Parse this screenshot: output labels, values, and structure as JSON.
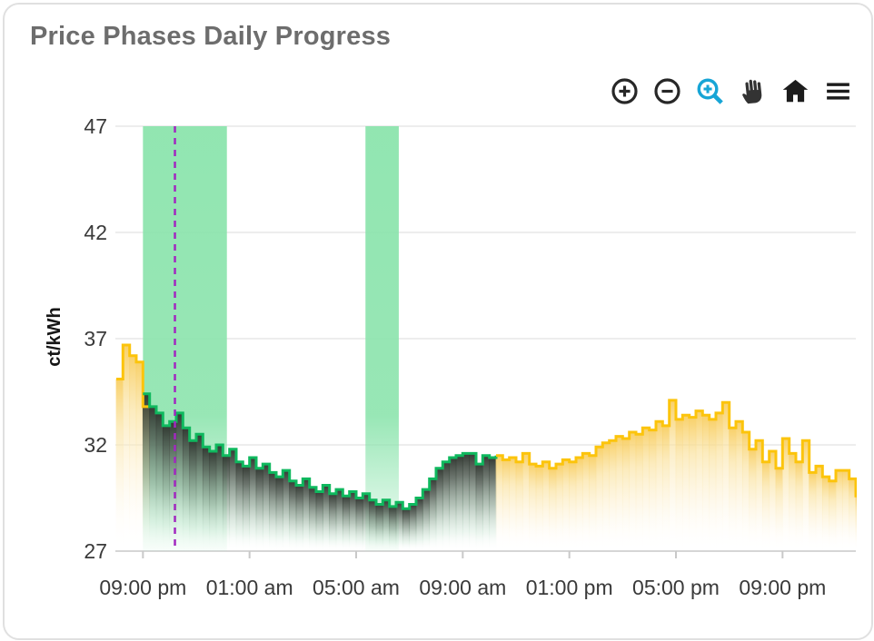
{
  "title": "Price Phases Daily Progress",
  "toolbar": {
    "icons": [
      "zoom-in-icon",
      "zoom-out-icon",
      "box-zoom-icon",
      "pan-hand-icon",
      "home-icon",
      "menu-icon"
    ],
    "icon_color": "#272727",
    "active_tool_color": "#17a5d6",
    "active_tool": "box-zoom"
  },
  "chart_data": {
    "type": "area",
    "title": "Price Phases Daily Progress",
    "xlabel": "",
    "ylabel": "ct/kWh",
    "ylim": [
      27,
      47
    ],
    "y_ticks": [
      47,
      42,
      37,
      32,
      27
    ],
    "grid": "horizontal-only",
    "x_tick_labels": [
      "09:00 pm",
      "01:00 am",
      "05:00 am",
      "09:00 am",
      "01:00 pm",
      "05:00 pm",
      "09:00 pm"
    ],
    "x_tick_hours": [
      1,
      5,
      9,
      13,
      17,
      21,
      25
    ],
    "x_start_time": "20:00",
    "interval_minutes": 15,
    "xlim_hours": [
      0,
      27.75
    ],
    "band_color": "#8ce4ad",
    "bands": [
      {
        "label": "cheap-phase",
        "start_hour": 1.0,
        "end_hour": 4.15
      },
      {
        "label": "cheap-phase",
        "start_hour": 9.35,
        "end_hour": 10.6
      }
    ],
    "now_line": {
      "hour": 2.2,
      "color": "#a228c0",
      "style": "dashed"
    },
    "segments": [
      {
        "phase": "expensive",
        "line_color": "#fcc40c",
        "fill_gradient": "yellow",
        "start_hour": 0,
        "values": [
          35.1,
          36.7,
          36.2,
          35.9,
          33.8
        ]
      },
      {
        "phase": "cheap",
        "line_color": "#0fb85e",
        "fill_gradient": "green",
        "start_hour": 1,
        "values": [
          34.4,
          33.8,
          33.5,
          32.9,
          33.1,
          33.5,
          32.8,
          32.2,
          32.5,
          31.9,
          31.7,
          32.0,
          31.5,
          31.8,
          31.2,
          31.0,
          31.4,
          30.9,
          31.1,
          30.7,
          30.5,
          30.8,
          30.3,
          30.1,
          30.4,
          30.0,
          29.8,
          30.1,
          29.7,
          29.9,
          29.6,
          29.8,
          29.5,
          29.7,
          29.4,
          29.2,
          29.4,
          29.1,
          29.3,
          29.0,
          29.2,
          29.5,
          29.9,
          30.4,
          30.9,
          31.2,
          31.4,
          31.5,
          31.6,
          31.6,
          31.1,
          31.5,
          31.4
        ]
      },
      {
        "phase": "expensive",
        "line_color": "#fcc40c",
        "fill_gradient": "yellow",
        "start_hour": 14.25,
        "values": [
          31.5,
          31.3,
          31.4,
          31.2,
          31.6,
          31.1,
          31.0,
          31.2,
          30.9,
          31.1,
          31.3,
          31.2,
          31.4,
          31.6,
          31.5,
          31.9,
          32.1,
          32.2,
          32.4,
          32.3,
          32.6,
          32.5,
          32.8,
          32.7,
          33.1,
          32.9,
          34.1,
          33.2,
          33.4,
          33.3,
          33.6,
          33.4,
          33.2,
          33.5,
          34.0,
          32.8,
          33.1,
          32.6,
          31.8,
          32.2,
          31.2,
          31.7,
          30.9,
          32.3,
          31.6,
          31.2,
          32.2,
          30.7,
          31.0,
          30.5,
          30.3,
          30.8,
          30.8,
          30.4,
          29.6
        ]
      }
    ]
  }
}
